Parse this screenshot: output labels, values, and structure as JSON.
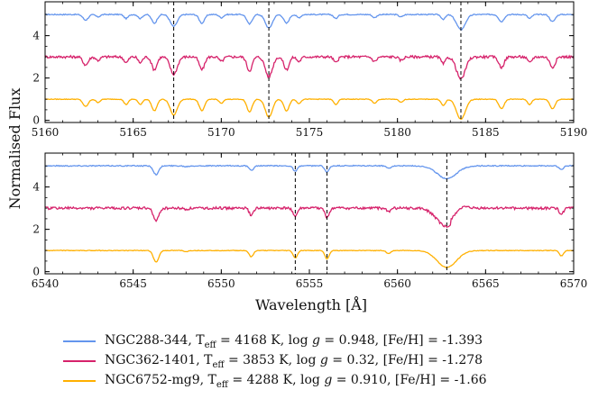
{
  "chart_data": [
    {
      "type": "line",
      "xlim": [
        5160,
        5190
      ],
      "ylim": [
        -0.1,
        5.6
      ],
      "xticks": [
        5160,
        5165,
        5170,
        5175,
        5180,
        5185,
        5190
      ],
      "yticks": [
        0,
        2,
        4
      ],
      "xtick_labels": [
        "5160",
        "5165",
        "5170",
        "5175",
        "5180",
        "5185",
        "5190"
      ],
      "ytick_labels": [
        "0",
        "2",
        "4"
      ],
      "vlines": [
        5167.3,
        5172.7,
        5183.6
      ],
      "offsets": [
        4,
        2,
        0
      ],
      "lines": [
        [
          5162.3,
          0.35,
          0.15
        ],
        [
          5163.0,
          0.15,
          0.12
        ],
        [
          5164.6,
          0.25,
          0.12
        ],
        [
          5165.4,
          0.25,
          0.12
        ],
        [
          5166.2,
          0.55,
          0.15
        ],
        [
          5167.3,
          0.75,
          0.2
        ],
        [
          5168.9,
          0.55,
          0.15
        ],
        [
          5170.0,
          0.2,
          0.12
        ],
        [
          5171.6,
          0.6,
          0.15
        ],
        [
          5172.7,
          0.85,
          0.2
        ],
        [
          5173.7,
          0.55,
          0.15
        ],
        [
          5174.4,
          0.2,
          0.12
        ],
        [
          5176.5,
          0.25,
          0.12
        ],
        [
          5178.7,
          0.2,
          0.12
        ],
        [
          5180.2,
          0.15,
          0.12
        ],
        [
          5182.6,
          0.3,
          0.12
        ],
        [
          5183.6,
          0.95,
          0.25
        ],
        [
          5185.9,
          0.45,
          0.15
        ],
        [
          5187.5,
          0.25,
          0.12
        ],
        [
          5188.8,
          0.45,
          0.15
        ]
      ]
    },
    {
      "type": "line",
      "xlim": [
        6540,
        6570
      ],
      "ylim": [
        -0.1,
        5.6
      ],
      "xticks": [
        6540,
        6545,
        6550,
        6555,
        6560,
        6565,
        6570
      ],
      "yticks": [
        0,
        2,
        4
      ],
      "xtick_labels": [
        "6540",
        "6545",
        "6550",
        "6555",
        "6560",
        "6565",
        "6570"
      ],
      "ytick_labels": [
        "0",
        "2",
        "4"
      ],
      "vlines": [
        6554.2,
        6556.0,
        6562.8
      ],
      "offsets": [
        4,
        2,
        0
      ],
      "lines": [
        [
          6546.3,
          0.55,
          0.15
        ],
        [
          6548.0,
          0.05,
          0.12
        ],
        [
          6551.7,
          0.3,
          0.12
        ],
        [
          6554.2,
          0.35,
          0.12
        ],
        [
          6556.0,
          0.4,
          0.12
        ],
        [
          6559.5,
          0.15,
          0.12
        ],
        [
          6562.8,
          0.8,
          0.55
        ],
        [
          6569.3,
          0.25,
          0.12
        ]
      ]
    }
  ],
  "axes": {
    "ylabel": "Normalised Flux",
    "xlabel": "Wavelength [Å]"
  },
  "series": [
    {
      "name": "NGC288-344",
      "color": "#6495ed",
      "offset": 4,
      "legend": "NGC288-344, Tₑff = 4168 K, log g = 0.948, [Fe/H] = -1.393"
    },
    {
      "name": "NGC362-1401",
      "color": "#d6226b",
      "offset": 2,
      "legend": "NGC362-1401, Tₑff = 3853 K, log g = 0.32, [Fe/H] = -1.278"
    },
    {
      "name": "NGC6752-mg9",
      "color": "#ffb000",
      "offset": 0,
      "legend": "NGC6752-mg9, Tₑff = 4288 K, log g = 0.910, [Fe/H] = -1.66"
    }
  ],
  "legend_text": [
    "NGC288-344, T",
    "eff",
    " = 4168 K, log ",
    "g",
    " = 0.948, [Fe/H] = -1.393",
    "NGC362-1401, T",
    " = 3853 K, log ",
    " = 0.32, [Fe/H] = -1.278",
    "NGC6752-mg9, T",
    " = 4288 K, log ",
    " = 0.910, [Fe/H] = -1.66"
  ]
}
